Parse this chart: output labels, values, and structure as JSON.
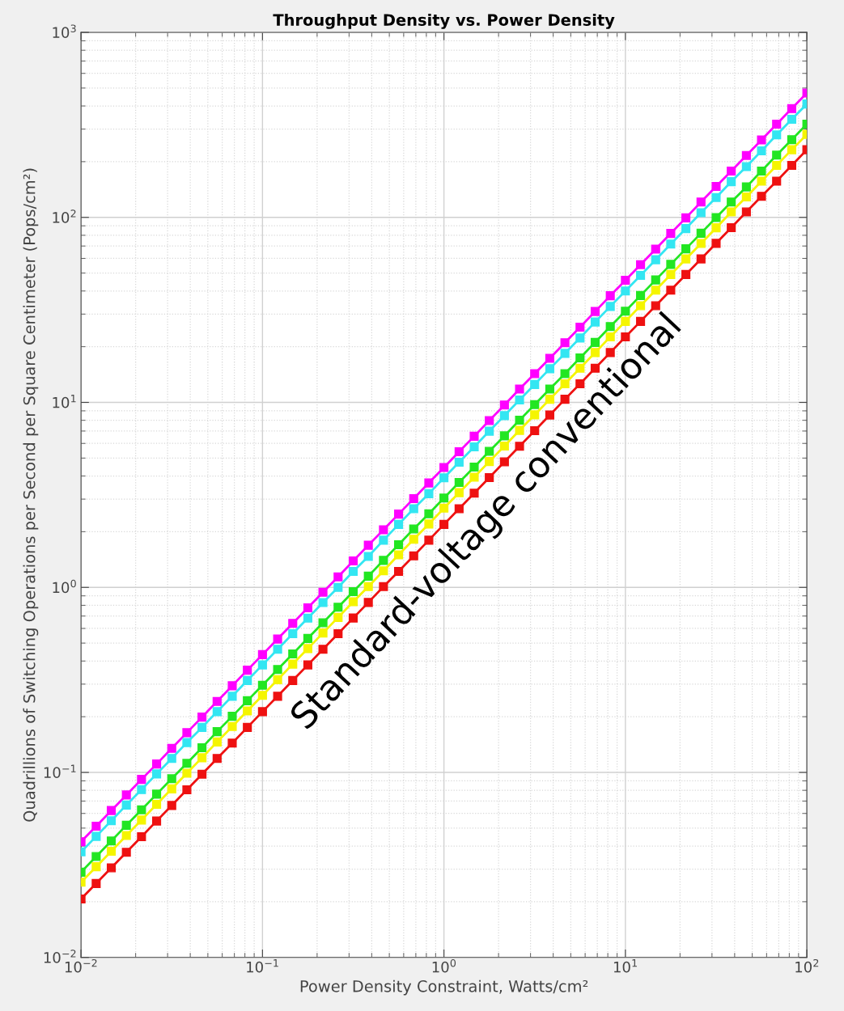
{
  "chart_data": {
    "type": "line",
    "title": "Throughput Density vs. Power Density",
    "xlabel": "Power Density Constraint, Watts/cm²",
    "ylabel": "Quadrillions of Switching Operations per Second per Square Centimeter (Pops/cm²)",
    "annotations": [
      "Standard-voltage conventional"
    ],
    "log": "xy",
    "grid": true,
    "marker": "square",
    "line_style": "solid",
    "legend": false,
    "xlim": [
      0.01,
      100
    ],
    "ylim": [
      0.01,
      1000
    ],
    "xticks": [
      {
        "value": 0.01,
        "label": "10$^{−2}$"
      },
      {
        "value": 0.1,
        "label": "10$^{−1}$"
      },
      {
        "value": 1,
        "label": "10$^{0}$"
      },
      {
        "value": 10,
        "label": "10$^{1}$"
      },
      {
        "value": 100,
        "label": "10$^{2}$"
      }
    ],
    "yticks": [
      {
        "value": 0.01,
        "label": "10$^{−2}$"
      },
      {
        "value": 0.1,
        "label": "10$^{−1}$"
      },
      {
        "value": 1,
        "label": "10$^{0}$"
      },
      {
        "value": 10,
        "label": "10$^{1}$"
      },
      {
        "value": 100,
        "label": "10$^{2}$"
      },
      {
        "value": 1000,
        "label": "10$^{3}$"
      }
    ],
    "x": [
      0.01,
      0.01212,
      0.01468,
      0.01778,
      0.02154,
      0.0261,
      0.03162,
      0.03831,
      0.04642,
      0.05623,
      0.06813,
      0.08254,
      0.1,
      0.1212,
      0.1468,
      0.1778,
      0.2154,
      0.261,
      0.3162,
      0.3831,
      0.4642,
      0.5623,
      0.6813,
      0.8254,
      1,
      1.212,
      1.468,
      1.778,
      2.154,
      2.61,
      3.162,
      3.831,
      4.642,
      5.623,
      6.813,
      8.254,
      10,
      12.12,
      14.68,
      17.78,
      21.54,
      26.1,
      31.62,
      38.31,
      46.42,
      56.23,
      68.13,
      82.54,
      100
    ],
    "series": [
      {
        "color": "#ff00ff",
        "values": [
          0.0422,
          0.0512,
          0.0622,
          0.0755,
          0.0917,
          0.111,
          0.135,
          0.164,
          0.199,
          0.242,
          0.294,
          0.357,
          0.433,
          0.526,
          0.639,
          0.776,
          0.942,
          1.14,
          1.39,
          1.69,
          2.05,
          2.49,
          3.02,
          3.67,
          4.45,
          5.41,
          6.56,
          7.97,
          9.68,
          11.8,
          14.3,
          17.3,
          21,
          25.5,
          31,
          37.7,
          45.7,
          55.5,
          67.4,
          81.9,
          99.4,
          121,
          147,
          178,
          216,
          262,
          319,
          387,
          470
        ]
      },
      {
        "color": "#33e6f2",
        "values": [
          0.0372,
          0.0451,
          0.0548,
          0.0666,
          0.0807,
          0.0981,
          0.119,
          0.145,
          0.175,
          0.213,
          0.258,
          0.314,
          0.381,
          0.463,
          0.562,
          0.682,
          0.828,
          1.0,
          1.22,
          1.47,
          1.8,
          2.19,
          2.66,
          3.21,
          3.91,
          4.75,
          5.75,
          6.99,
          8.48,
          10.3,
          12.5,
          15.2,
          18.4,
          22.3,
          27.2,
          33,
          40,
          48.6,
          59,
          71.7,
          87,
          106,
          128,
          156,
          188,
          229,
          279,
          339,
          410
        ]
      },
      {
        "color": "#22e622",
        "values": [
          0.0289,
          0.0351,
          0.0426,
          0.0518,
          0.0628,
          0.0763,
          0.0925,
          0.112,
          0.136,
          0.166,
          0.201,
          0.244,
          0.296,
          0.36,
          0.437,
          0.53,
          0.644,
          0.781,
          0.949,
          1.15,
          1.4,
          1.7,
          2.07,
          2.5,
          3.04,
          3.69,
          4.47,
          5.44,
          6.59,
          8.01,
          9.73,
          11.8,
          14.3,
          17.4,
          21.1,
          25.7,
          31.1,
          37.8,
          45.9,
          55.7,
          67.6,
          82.1,
          99.7,
          121,
          146,
          178,
          217,
          263,
          319
        ]
      },
      {
        "color": "#f5f500",
        "values": [
          0.0255,
          0.0309,
          0.0375,
          0.0456,
          0.0553,
          0.0672,
          0.0815,
          0.099,
          0.12,
          0.146,
          0.177,
          0.215,
          0.261,
          0.317,
          0.385,
          0.467,
          0.567,
          0.688,
          0.836,
          1.01,
          1.23,
          1.5,
          1.82,
          2.2,
          2.68,
          3.25,
          3.94,
          4.79,
          5.81,
          7.06,
          8.57,
          10.4,
          12.6,
          15.3,
          18.6,
          22.6,
          27.4,
          33.3,
          40.4,
          49.1,
          59.6,
          72.3,
          87.8,
          107,
          129,
          157,
          191,
          232,
          281
        ]
      },
      {
        "color": "#ee1111",
        "values": [
          0.0207,
          0.0251,
          0.0305,
          0.037,
          0.0449,
          0.0546,
          0.0663,
          0.0805,
          0.0978,
          0.119,
          0.144,
          0.175,
          0.213,
          0.258,
          0.314,
          0.381,
          0.463,
          0.562,
          0.683,
          0.829,
          1.01,
          1.22,
          1.48,
          1.8,
          2.19,
          2.66,
          3.23,
          3.92,
          4.77,
          5.79,
          7.03,
          8.54,
          10.4,
          12.6,
          15.3,
          18.6,
          22.6,
          27.4,
          33.3,
          40.4,
          49.1,
          59.6,
          72.4,
          87.9,
          107,
          130,
          157,
          191,
          232
        ]
      }
    ]
  }
}
